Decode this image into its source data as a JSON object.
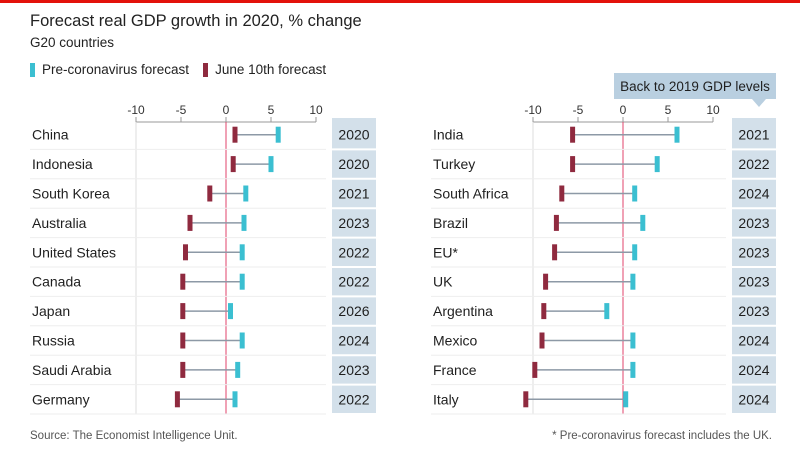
{
  "title": "Forecast real GDP growth in 2020, % change",
  "subtitle": "G20 countries",
  "legend": {
    "pre_label": "Pre-coronavirus forecast",
    "june_label": "June 10th forecast"
  },
  "callout": "Back to 2019 GDP levels",
  "source": "Source: The Economist Intelligence Unit.",
  "footnote": "* Pre-coronavirus forecast includes the UK.",
  "colors": {
    "pre": "#3bbfd1",
    "june": "#8f2a3f",
    "zero": "#e0436b",
    "connector": "#8d99a6",
    "year_bg": "#d3e0ea",
    "year_bg_top": "#b9cfe0",
    "axis": "#999999"
  },
  "chart_data": [
    {
      "type": "dumbbell",
      "title": "Forecast real GDP growth in 2020, % change",
      "xlim": [
        -10,
        10
      ],
      "ticks": [
        -10,
        -5,
        0,
        5,
        10
      ],
      "series": [
        "Pre-coronavirus forecast",
        "June 10th forecast"
      ],
      "rows": [
        {
          "country": "China",
          "pre": 5.8,
          "june": 1.0,
          "year": "2020"
        },
        {
          "country": "Indonesia",
          "pre": 5.0,
          "june": 0.8,
          "year": "2020"
        },
        {
          "country": "South Korea",
          "pre": 2.2,
          "june": -1.8,
          "year": "2021"
        },
        {
          "country": "Australia",
          "pre": 2.0,
          "june": -4.0,
          "year": "2023"
        },
        {
          "country": "United States",
          "pre": 1.8,
          "june": -4.5,
          "year": "2022"
        },
        {
          "country": "Canada",
          "pre": 1.8,
          "june": -4.8,
          "year": "2022"
        },
        {
          "country": "Japan",
          "pre": 0.5,
          "june": -4.8,
          "year": "2026"
        },
        {
          "country": "Russia",
          "pre": 1.8,
          "june": -4.8,
          "year": "2024"
        },
        {
          "country": "Saudi Arabia",
          "pre": 1.3,
          "june": -4.8,
          "year": "2023"
        },
        {
          "country": "Germany",
          "pre": 1.0,
          "june": -5.4,
          "year": "2022"
        }
      ]
    },
    {
      "type": "dumbbell",
      "title": "Forecast real GDP growth in 2020, % change",
      "xlim": [
        -10,
        10
      ],
      "ticks": [
        -10,
        -5,
        0,
        5,
        10
      ],
      "series": [
        "Pre-coronavirus forecast",
        "June 10th forecast"
      ],
      "rows": [
        {
          "country": "India",
          "pre": 6.0,
          "june": -5.6,
          "year": "2021"
        },
        {
          "country": "Turkey",
          "pre": 3.8,
          "june": -5.6,
          "year": "2022"
        },
        {
          "country": "South Africa",
          "pre": 1.3,
          "june": -6.8,
          "year": "2024"
        },
        {
          "country": "Brazil",
          "pre": 2.2,
          "june": -7.4,
          "year": "2023"
        },
        {
          "country": "EU*",
          "pre": 1.3,
          "june": -7.6,
          "year": "2023"
        },
        {
          "country": "UK",
          "pre": 1.1,
          "june": -8.6,
          "year": "2023"
        },
        {
          "country": "Argentina",
          "pre": -1.8,
          "june": -8.8,
          "year": "2023"
        },
        {
          "country": "Mexico",
          "pre": 1.1,
          "june": -9.0,
          "year": "2024"
        },
        {
          "country": "France",
          "pre": 1.1,
          "june": -9.8,
          "year": "2024"
        },
        {
          "country": "Italy",
          "pre": 0.3,
          "june": -10.8,
          "year": "2024"
        }
      ]
    }
  ]
}
